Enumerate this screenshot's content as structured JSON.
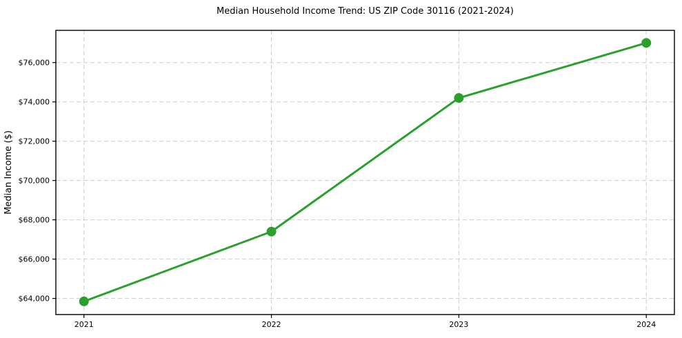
{
  "chart_data": {
    "type": "line",
    "title": "Median Household Income Trend: US ZIP Code 30116 (2021-2024)",
    "xlabel": "",
    "ylabel": "Median Income ($)",
    "x": [
      2021,
      2022,
      2023,
      2024
    ],
    "values": [
      63850,
      67400,
      74200,
      77000
    ],
    "xticks": [
      {
        "value": 2021,
        "label": "2021"
      },
      {
        "value": 2022,
        "label": "2022"
      },
      {
        "value": 2023,
        "label": "2023"
      },
      {
        "value": 2024,
        "label": "2024"
      }
    ],
    "yticks": [
      {
        "value": 64000,
        "label": "$64,000"
      },
      {
        "value": 66000,
        "label": "$66,000"
      },
      {
        "value": 68000,
        "label": "$68,000"
      },
      {
        "value": 70000,
        "label": "$70,000"
      },
      {
        "value": 72000,
        "label": "$72,000"
      },
      {
        "value": 74000,
        "label": "$74,000"
      },
      {
        "value": 76000,
        "label": "$76,000"
      }
    ],
    "xlim": [
      2020.85,
      2024.15
    ],
    "ylim": [
      63180,
      77640
    ],
    "grid": true,
    "grid_style": "dashed",
    "legend_position": "none",
    "line_color": "#2ca02c",
    "marker_color": "#2ca02c",
    "grid_color": "#cccccc",
    "frame_color": "#000000",
    "text_color": "#000000",
    "background_color": "#ffffff"
  }
}
